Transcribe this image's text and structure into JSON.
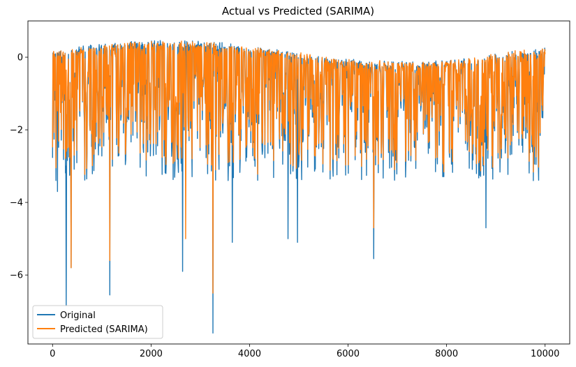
{
  "chart_data": {
    "type": "line",
    "title": "Actual vs Predicted (SARIMA)",
    "xlabel": "",
    "ylabel": "",
    "xlim": [
      -500,
      10500
    ],
    "ylim": [
      -7.9,
      1.0
    ],
    "x_ticks": [
      0,
      2000,
      4000,
      6000,
      8000,
      10000
    ],
    "x_tick_labels": [
      "0",
      "2000",
      "4000",
      "6000",
      "8000",
      "10000"
    ],
    "y_ticks": [
      0,
      -2,
      -4,
      -6
    ],
    "y_tick_labels": [
      "0",
      "−2",
      "−4",
      "−6"
    ],
    "grid": false,
    "legend_position": "lower-left",
    "x_range": [
      0,
      10000
    ],
    "series": [
      {
        "name": "Original",
        "color": "#1f77b4",
        "y_envelope_top": 0.3,
        "typical_low": -2.3,
        "extreme_lows": [
          {
            "x": 100,
            "y": -3.7
          },
          {
            "x": 280,
            "y": -6.85
          },
          {
            "x": 380,
            "y": -5.8
          },
          {
            "x": 1160,
            "y": -6.55
          },
          {
            "x": 2640,
            "y": -5.9
          },
          {
            "x": 3260,
            "y": -7.6
          },
          {
            "x": 3650,
            "y": -5.1
          },
          {
            "x": 4780,
            "y": -5.0
          },
          {
            "x": 4970,
            "y": -5.1
          },
          {
            "x": 6520,
            "y": -5.55
          },
          {
            "x": 8800,
            "y": -4.7
          }
        ]
      },
      {
        "name": "Predicted (SARIMA)",
        "color": "#ff7f0e",
        "y_envelope_top": 0.3,
        "typical_low": -2.3,
        "extreme_lows": [
          {
            "x": 380,
            "y": -5.8
          },
          {
            "x": 1160,
            "y": -5.6
          },
          {
            "x": 2700,
            "y": -5.0
          },
          {
            "x": 3260,
            "y": -6.5
          },
          {
            "x": 6520,
            "y": -4.7
          }
        ]
      }
    ]
  }
}
